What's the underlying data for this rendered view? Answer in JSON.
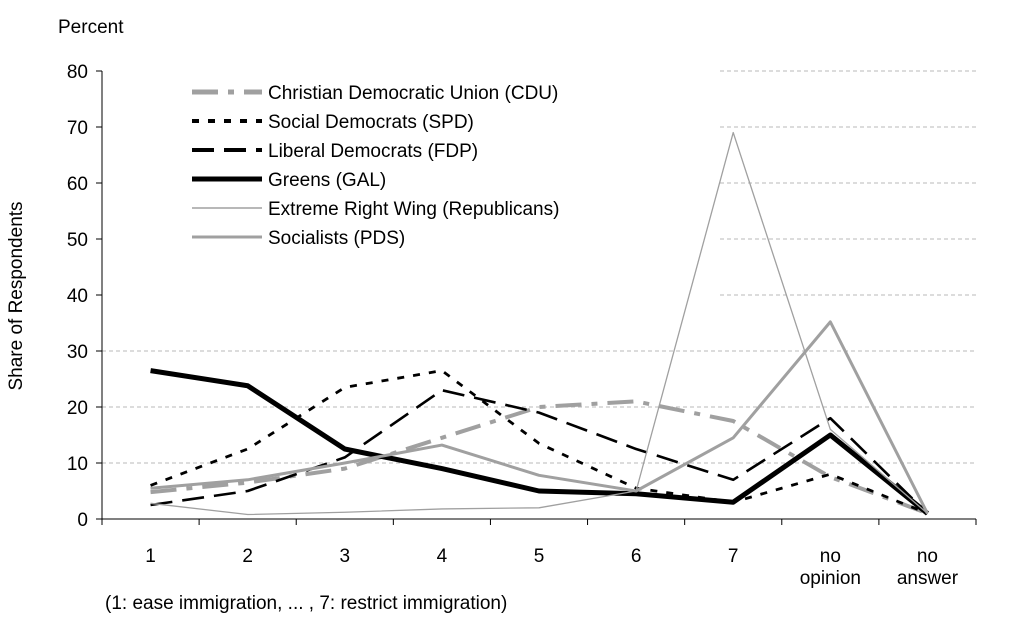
{
  "chart_data": {
    "type": "line",
    "unit_label": "Percent",
    "ylabel": "Share of Respondents",
    "xlabel": "(1: ease immigration, ... , 7: restrict immigration)",
    "ylim": [
      0,
      80
    ],
    "yticks": [
      0,
      10,
      20,
      30,
      40,
      50,
      60,
      70,
      80
    ],
    "categories": [
      [
        "1"
      ],
      [
        "2"
      ],
      [
        "3"
      ],
      [
        "4"
      ],
      [
        "5"
      ],
      [
        "6"
      ],
      [
        "7"
      ],
      [
        "no",
        "opinion"
      ],
      [
        "no",
        "answer"
      ]
    ],
    "grid": "horizontal-dashed",
    "legend_position": "top-left",
    "series": [
      {
        "name": "Christian Democratic Union (CDU)",
        "style": "dash-dot",
        "color": "#a0a0a0",
        "values": [
          4.8,
          6.5,
          9.0,
          14.5,
          20.0,
          21.0,
          17.5,
          7.5,
          1.0
        ]
      },
      {
        "name": "Social Democrats (SPD)",
        "style": "dotted",
        "color": "#000000",
        "values": [
          6.0,
          12.5,
          23.5,
          26.5,
          13.5,
          5.5,
          3.0,
          8.0,
          1.0
        ]
      },
      {
        "name": "Liberal Democrats (FDP)",
        "style": "long-dash",
        "color": "#000000",
        "values": [
          2.5,
          5.0,
          11.0,
          23.0,
          19.0,
          12.5,
          7.0,
          18.0,
          1.0
        ]
      },
      {
        "name": "Greens (GAL)",
        "style": "thick",
        "color": "#000000",
        "values": [
          26.5,
          23.8,
          12.5,
          9.0,
          5.0,
          4.5,
          3.0,
          15.0,
          1.0
        ]
      },
      {
        "name": "Extreme Right Wing (Republicans)",
        "style": "thin",
        "color": "#a0a0a0",
        "values": [
          2.8,
          0.8,
          1.2,
          1.8,
          2.0,
          5.0,
          69.0,
          16.0,
          1.0
        ]
      },
      {
        "name": "Socialists (PDS)",
        "style": "medium",
        "color": "#a0a0a0",
        "values": [
          5.5,
          7.0,
          10.0,
          13.2,
          7.8,
          5.0,
          14.5,
          35.2,
          1.0
        ]
      }
    ]
  }
}
